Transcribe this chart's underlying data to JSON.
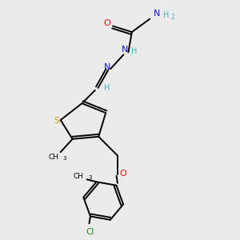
{
  "bg_color": "#ebebeb",
  "atom_colors": {
    "C": "#000000",
    "H": "#4aacbc",
    "N": "#1010cc",
    "O": "#dd1010",
    "S": "#c8a010",
    "Cl": "#208020"
  },
  "bond_color": "#000000",
  "bond_width": 1.4,
  "fig_width": 3.0,
  "fig_height": 3.0,
  "dpi": 100
}
